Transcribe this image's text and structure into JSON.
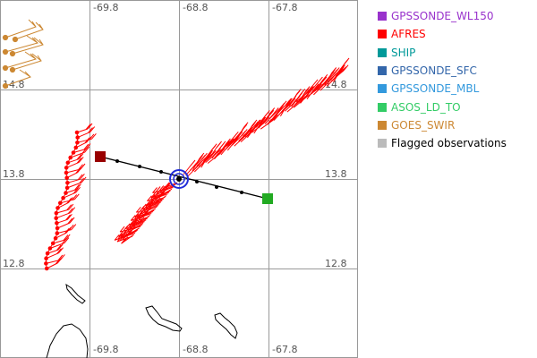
{
  "map": {
    "lon_ticks": [
      "-69.8",
      "-68.8",
      "-67.8"
    ],
    "lat_ticks": [
      "13.8",
      "12.8"
    ],
    "partial_lat_tick": "14.8"
  },
  "legend": {
    "items": [
      {
        "label": "GPSSONDE_WL150",
        "color": "#9933cc"
      },
      {
        "label": "AFRES",
        "color": "#ff0000"
      },
      {
        "label": "SHIP",
        "color": "#009999"
      },
      {
        "label": "GPSSONDE_SFC",
        "color": "#3366aa"
      },
      {
        "label": "GPSSONDE_MBL",
        "color": "#3399dd"
      },
      {
        "label": "ASOS_LD_TO",
        "color": "#33cc66"
      },
      {
        "label": "GOES_SWIR",
        "color": "#cc8833"
      },
      {
        "label": "Flagged observations",
        "color": "#bbbbbb"
      }
    ]
  },
  "colors": {
    "grid": "#999999",
    "storm_track": "#000000",
    "storm_center": "#1f2bd9",
    "track_start": "#990000",
    "track_end": "#22aa22"
  }
}
